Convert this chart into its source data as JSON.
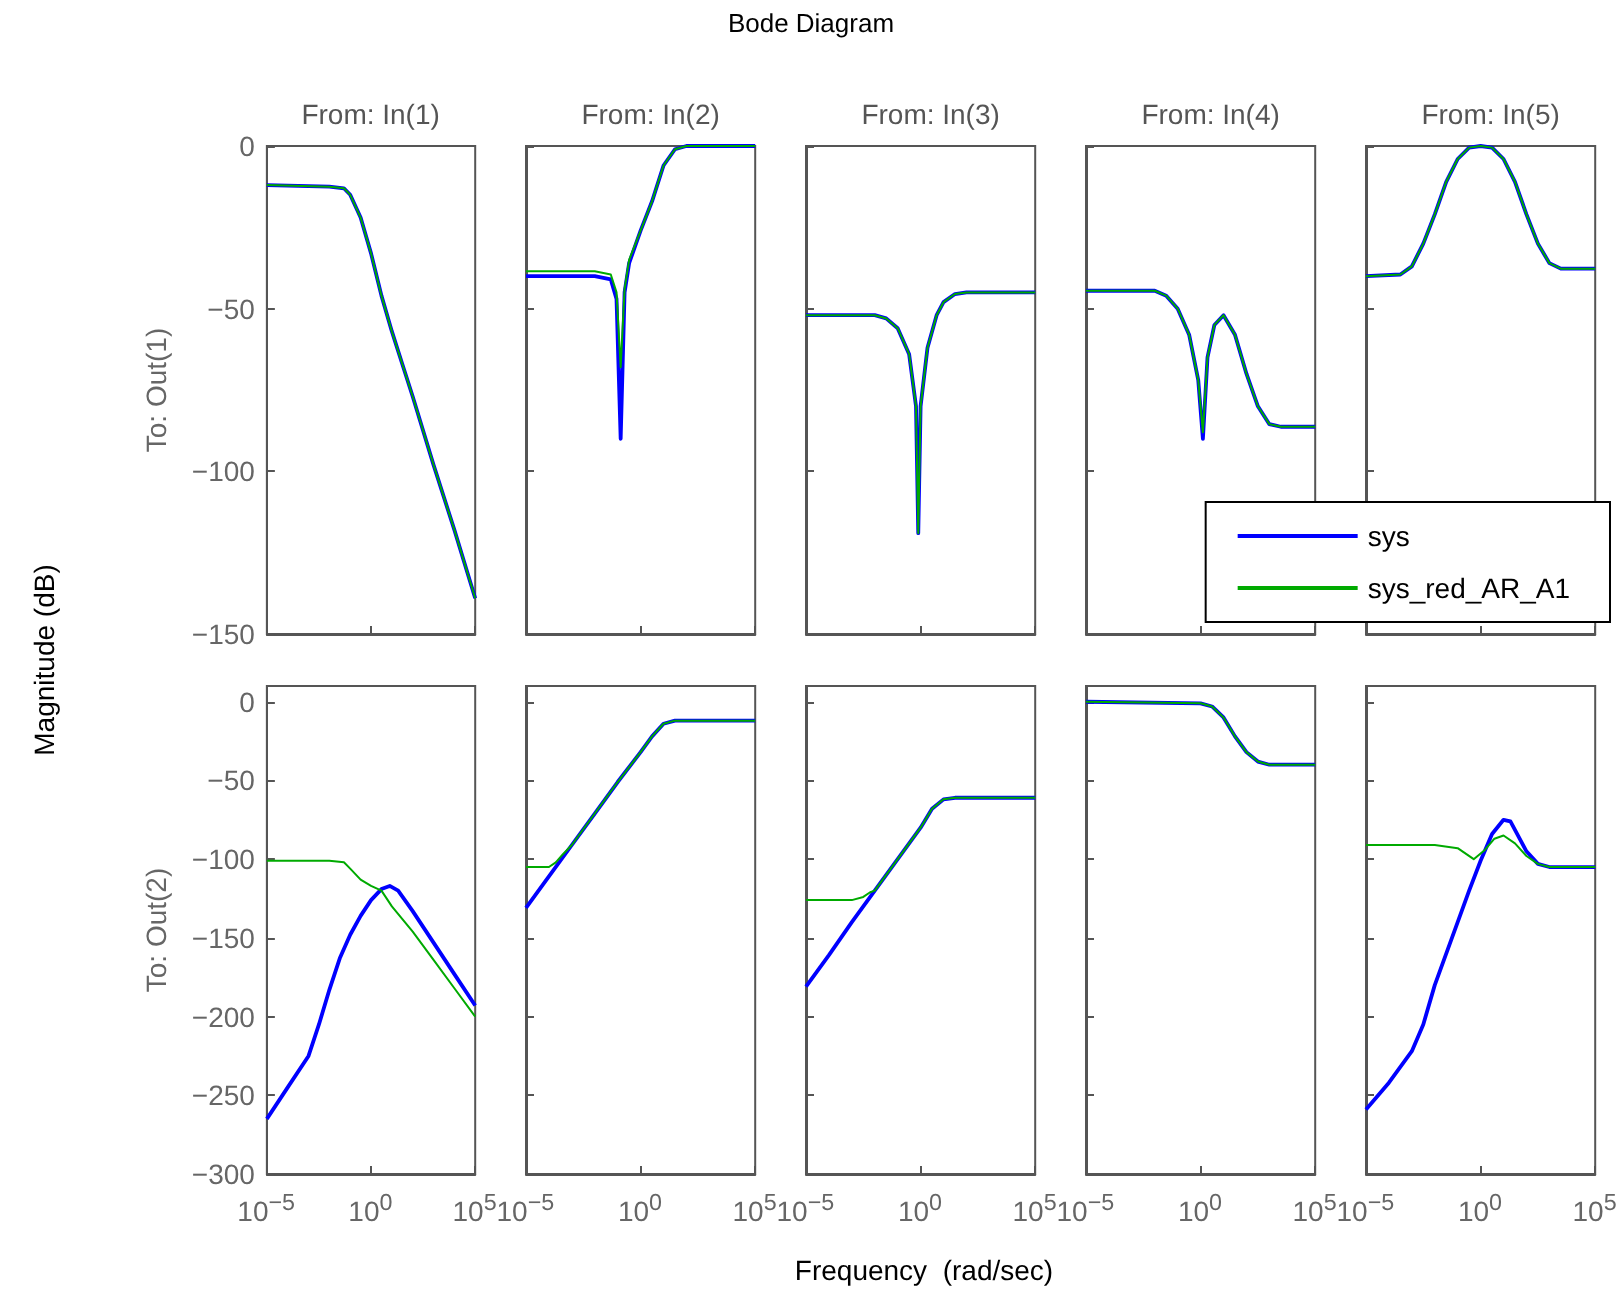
{
  "chart_data": [
    {
      "type": "line",
      "title": "From: In(1)",
      "ylabel": "To: Out(1)",
      "log": "x",
      "xlim": [
        1e-05,
        100000
      ],
      "ylim": [
        -150,
        0
      ],
      "xticks": [
        {
          "value": 1e-05,
          "label": null
        },
        {
          "value": 1,
          "label": null
        },
        {
          "value": 100000,
          "label": null
        }
      ],
      "yticks": [
        -150,
        -100,
        -50,
        0
      ],
      "tick_labels": "y",
      "annotations": [
        "Bode Diagram",
        "Magnitude (dB)",
        "Frequency  (rad/sec)"
      ],
      "series": [
        {
          "color": "#0000ff",
          "x": [
            1e-05,
            0.01,
            0.05,
            0.1,
            0.316,
            1,
            3.16,
            10,
            31.6,
            100,
            1000,
            10000,
            100000
          ],
          "values": [
            -12,
            -12.5,
            -13,
            -15,
            -22,
            -33,
            -46,
            -57,
            -67,
            -77,
            -98,
            -118,
            -139
          ]
        },
        {
          "color": "#00aa00",
          "x": [
            1e-05,
            0.01,
            0.05,
            0.1,
            0.316,
            1,
            3.16,
            10,
            31.6,
            100,
            1000,
            10000,
            100000
          ],
          "values": [
            -12,
            -12.5,
            -13,
            -15,
            -22,
            -33,
            -46,
            -57,
            -67,
            -77,
            -98,
            -118,
            -139
          ]
        }
      ]
    },
    {
      "type": "line",
      "title": "From: In(2)",
      "log": "x",
      "xlim": [
        1e-05,
        100000
      ],
      "ylim": [
        -150,
        0
      ],
      "xticks": [
        {
          "value": 1e-05,
          "label": null
        },
        {
          "value": 1,
          "label": null
        },
        {
          "value": 100000,
          "label": null
        }
      ],
      "yticks": [
        -150,
        -100,
        -50,
        0
      ],
      "tick_labels": false,
      "series": [
        {
          "color": "#0000ff",
          "x": [
            1e-05,
            0.01,
            0.05,
            0.089,
            0.135,
            0.2,
            0.316,
            1,
            3.16,
            10,
            31.6,
            100,
            100000
          ],
          "values": [
            -40,
            -40,
            -41,
            -47,
            -90,
            -45,
            -36,
            -26,
            -17,
            -6,
            -1,
            0,
            0
          ]
        },
        {
          "color": "#00aa00",
          "x": [
            1e-05,
            0.01,
            0.05,
            0.089,
            0.135,
            0.2,
            0.316,
            1,
            3.16,
            10,
            31.6,
            100,
            100000
          ],
          "values": [
            -38.5,
            -38.5,
            -39.5,
            -45,
            -68,
            -44,
            -35,
            -26,
            -17,
            -6,
            -1,
            0,
            0
          ]
        }
      ]
    },
    {
      "type": "line",
      "title": "From: In(3)",
      "log": "x",
      "xlim": [
        1e-05,
        100000
      ],
      "ylim": [
        -150,
        0
      ],
      "xticks": [
        {
          "value": 1e-05,
          "label": null
        },
        {
          "value": 1,
          "label": null
        },
        {
          "value": 100000,
          "label": null
        }
      ],
      "yticks": [
        -150,
        -100,
        -50,
        0
      ],
      "tick_labels": false,
      "series": [
        {
          "color": "#0000ff",
          "x": [
            1e-05,
            0.01,
            0.0316,
            0.1,
            0.316,
            0.63,
            0.79,
            1,
            2,
            5,
            10,
            31.6,
            100,
            100000
          ],
          "values": [
            -52,
            -52,
            -53,
            -56,
            -64,
            -80,
            -119,
            -80,
            -62,
            -52,
            -48,
            -45.5,
            -45,
            -45
          ]
        },
        {
          "color": "#00aa00",
          "x": [
            1e-05,
            0.01,
            0.0316,
            0.1,
            0.316,
            0.63,
            0.79,
            1,
            2,
            5,
            10,
            31.6,
            100,
            100000
          ],
          "values": [
            -52,
            -52,
            -53,
            -56,
            -64,
            -80,
            -119,
            -80,
            -62,
            -52,
            -48,
            -45.5,
            -45,
            -45
          ]
        }
      ]
    },
    {
      "type": "line",
      "title": "From: In(4)",
      "log": "x",
      "xlim": [
        1e-05,
        100000
      ],
      "ylim": [
        -150,
        0
      ],
      "xticks": [
        {
          "value": 1e-05,
          "label": null
        },
        {
          "value": 1,
          "label": null
        },
        {
          "value": 100000,
          "label": null
        }
      ],
      "yticks": [
        -150,
        -100,
        -50,
        0
      ],
      "tick_labels": false,
      "legend": "bottom right",
      "series": [
        {
          "name": "sys",
          "color": "#0000ff",
          "x": [
            1e-05,
            0.01,
            0.0316,
            0.1,
            0.316,
            0.79,
            1.26,
            2,
            4,
            10,
            31.6,
            100,
            316,
            1000,
            3162,
            100000
          ],
          "values": [
            -44.5,
            -44.5,
            -46,
            -50,
            -58,
            -72,
            -90,
            -65,
            -55,
            -52,
            -58,
            -70,
            -80,
            -85.5,
            -86.3,
            -86.3
          ]
        },
        {
          "name": "sys_red_AR_A1",
          "color": "#00aa00",
          "x": [
            1e-05,
            0.01,
            0.0316,
            0.1,
            0.316,
            0.79,
            1.26,
            2,
            4,
            10,
            31.6,
            100,
            316,
            1000,
            3162,
            100000
          ],
          "values": [
            -44.5,
            -44.5,
            -46,
            -50,
            -58,
            -72,
            -88,
            -65,
            -55,
            -52,
            -58,
            -70,
            -80,
            -85.5,
            -86.3,
            -86.3
          ]
        }
      ]
    },
    {
      "type": "line",
      "title": "From: In(5)",
      "log": "x",
      "xlim": [
        1e-05,
        100000
      ],
      "ylim": [
        -150,
        0
      ],
      "xticks": [
        {
          "value": 1e-05,
          "label": null
        },
        {
          "value": 1,
          "label": null
        },
        {
          "value": 100000,
          "label": null
        }
      ],
      "yticks": [
        -150,
        -100,
        -50,
        0
      ],
      "tick_labels": false,
      "series": [
        {
          "color": "#0000ff",
          "x": [
            1e-05,
            0.000316,
            0.001,
            0.00316,
            0.01,
            0.0316,
            0.1,
            0.316,
            1,
            3.16,
            10,
            31.6,
            100,
            316,
            1000,
            3162,
            100000
          ],
          "values": [
            -40,
            -39.5,
            -37,
            -30,
            -21,
            -11,
            -4,
            -0.5,
            0,
            -0.5,
            -4,
            -11,
            -21,
            -30,
            -36,
            -37.7,
            -37.7
          ]
        },
        {
          "color": "#00aa00",
          "x": [
            1e-05,
            0.000316,
            0.001,
            0.00316,
            0.01,
            0.0316,
            0.1,
            0.316,
            1,
            3.16,
            10,
            31.6,
            100,
            316,
            1000,
            3162,
            100000
          ],
          "values": [
            -40,
            -39.5,
            -37,
            -30,
            -21,
            -11,
            -4,
            -0.5,
            0,
            -0.5,
            -4,
            -11,
            -21,
            -30,
            -36,
            -37.7,
            -37.7
          ]
        }
      ]
    },
    {
      "type": "line",
      "ylabel": "To: Out(2)",
      "log": "x",
      "xlim": [
        1e-05,
        100000
      ],
      "ylim": [
        -300,
        10
      ],
      "xticks": [
        {
          "value": 1e-05,
          "label": "10$^{−5}$"
        },
        {
          "value": 1,
          "label": "10$^{0}$"
        },
        {
          "value": 100000,
          "label": "10$^{5}$"
        }
      ],
      "yticks": [
        -300,
        -250,
        -200,
        -150,
        -100,
        -50,
        0
      ],
      "series": [
        {
          "color": "#0000ff",
          "x": [
            1e-05,
            0.0001,
            0.001,
            0.00316,
            0.01,
            0.0316,
            0.1,
            0.316,
            1,
            3.16,
            7.9,
            20,
            100,
            1000,
            10000,
            100000
          ],
          "values": [
            -265,
            -245,
            -225,
            -205,
            -183,
            -163,
            -148,
            -136,
            -126,
            -119,
            -117,
            -120,
            -133,
            -153,
            -173,
            -193
          ]
        },
        {
          "color": "#00aa00",
          "x": [
            1e-05,
            0.01,
            0.05,
            0.1,
            0.316,
            1,
            3.16,
            10,
            100,
            1000,
            10000,
            100000
          ],
          "values": [
            -101,
            -101,
            -102,
            -106,
            -113,
            -117,
            -120,
            -130,
            -146,
            -164,
            -182,
            -200
          ]
        }
      ]
    },
    {
      "type": "line",
      "log": "x",
      "xlim": [
        1e-05,
        100000
      ],
      "ylim": [
        -300,
        10
      ],
      "xticks": [
        {
          "value": 1e-05,
          "label": "10$^{−5}$"
        },
        {
          "value": 1,
          "label": "10$^{0}$"
        },
        {
          "value": 100000,
          "label": "10$^{5}$"
        }
      ],
      "yticks": [
        -300,
        -250,
        -200,
        -150,
        -100,
        -50,
        0
      ],
      "tick_labels": "x",
      "series": [
        {
          "color": "#0000ff",
          "x": [
            1e-05,
            0.0001,
            0.001,
            0.01,
            0.1,
            1,
            3.16,
            10,
            31.6,
            100000
          ],
          "values": [
            -131,
            -111,
            -91,
            -71,
            -51,
            -32,
            -22,
            -14,
            -12,
            -12
          ]
        },
        {
          "color": "#00aa00",
          "x": [
            1e-05,
            0.0001,
            0.0002,
            0.0004,
            0.001,
            0.01,
            0.1,
            1,
            3.16,
            10,
            31.6,
            100000
          ],
          "values": [
            -105,
            -105,
            -102,
            -97,
            -91,
            -71,
            -51,
            -32,
            -22,
            -14,
            -12,
            -12
          ]
        }
      ]
    },
    {
      "type": "line",
      "log": "x",
      "xlim": [
        1e-05,
        100000
      ],
      "ylim": [
        -300,
        10
      ],
      "xticks": [
        {
          "value": 1e-05,
          "label": "10$^{−5}$"
        },
        {
          "value": 1,
          "label": "10$^{0}$"
        },
        {
          "value": 100000,
          "label": "10$^{5}$"
        }
      ],
      "yticks": [
        -300,
        -250,
        -200,
        -150,
        -100,
        -50,
        0
      ],
      "tick_labels": "x",
      "series": [
        {
          "color": "#0000ff",
          "x": [
            1e-05,
            0.0001,
            0.001,
            0.01,
            0.1,
            1,
            3.16,
            10,
            31.6,
            100000
          ],
          "values": [
            -181,
            -161,
            -140,
            -120,
            -100,
            -80,
            -68,
            -62,
            -61,
            -61
          ]
        },
        {
          "color": "#00aa00",
          "x": [
            1e-05,
            0.001,
            0.00316,
            0.0063,
            0.01,
            0.1,
            1,
            3.16,
            10,
            31.6,
            100000
          ],
          "values": [
            -126,
            -126,
            -124,
            -121,
            -120,
            -100,
            -80,
            -68,
            -62,
            -61,
            -61
          ]
        }
      ]
    },
    {
      "type": "line",
      "log": "x",
      "xlim": [
        1e-05,
        100000
      ],
      "ylim": [
        -300,
        10
      ],
      "xticks": [
        {
          "value": 1e-05,
          "label": "10$^{−5}$"
        },
        {
          "value": 1,
          "label": "10$^{0}$"
        },
        {
          "value": 100000,
          "label": "10$^{5}$"
        }
      ],
      "yticks": [
        -300,
        -250,
        -200,
        -150,
        -100,
        -50,
        0
      ],
      "tick_labels": "x",
      "series": [
        {
          "color": "#0000ff",
          "x": [
            1e-05,
            1,
            3.16,
            10,
            31.6,
            100,
            316,
            1000,
            100000
          ],
          "values": [
            0,
            -1,
            -3,
            -10,
            -22,
            -32,
            -38,
            -40,
            -40
          ]
        },
        {
          "color": "#00aa00",
          "x": [
            1e-05,
            1,
            3.16,
            10,
            31.6,
            100,
            316,
            1000,
            100000
          ],
          "values": [
            0,
            -1,
            -3,
            -10,
            -22,
            -32,
            -38,
            -40,
            -40
          ]
        }
      ]
    },
    {
      "type": "line",
      "log": "x",
      "xlim": [
        1e-05,
        100000
      ],
      "ylim": [
        -300,
        10
      ],
      "xticks": [
        {
          "value": 1e-05,
          "label": "10$^{−5}$"
        },
        {
          "value": 1,
          "label": "10$^{0}$"
        },
        {
          "value": 100000,
          "label": "10$^{5}$"
        }
      ],
      "yticks": [
        -300,
        -250,
        -200,
        -150,
        -100,
        -50,
        0
      ],
      "tick_labels": "x",
      "series": [
        {
          "color": "#0000ff",
          "x": [
            1e-05,
            0.0001,
            0.001,
            0.00316,
            0.01,
            0.0316,
            0.1,
            0.316,
            1,
            3.16,
            10,
            20,
            100,
            316,
            1000,
            100000
          ],
          "values": [
            -259,
            -242,
            -222,
            -205,
            -180,
            -160,
            -140,
            -120,
            -101,
            -84,
            -75,
            -76,
            -95,
            -103,
            -105,
            -105
          ]
        },
        {
          "color": "#00aa00",
          "x": [
            1e-05,
            0.01,
            0.1,
            0.5,
            1.58,
            4,
            10,
            31.6,
            100,
            316,
            1000,
            100000
          ],
          "values": [
            -91,
            -91,
            -93,
            -100,
            -94,
            -87,
            -85,
            -90,
            -98,
            -103,
            -105,
            -105
          ]
        }
      ]
    }
  ]
}
